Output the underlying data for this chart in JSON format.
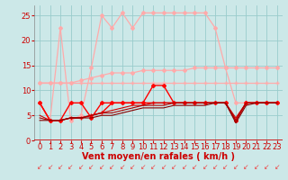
{
  "xlabel": "Vent moyen/en rafales ( km/h )",
  "background_color": "#cce8e8",
  "grid_color": "#99cccc",
  "xlim": [
    -0.5,
    23.5
  ],
  "ylim": [
    0,
    27
  ],
  "yticks": [
    0,
    5,
    10,
    15,
    20,
    25
  ],
  "xticks": [
    0,
    1,
    2,
    3,
    4,
    5,
    6,
    7,
    8,
    9,
    10,
    11,
    12,
    13,
    14,
    15,
    16,
    17,
    18,
    19,
    20,
    21,
    22,
    23
  ],
  "series": [
    {
      "y": [
        7.5,
        4.0,
        22.5,
        4.0,
        5.0,
        14.5,
        25.0,
        22.5,
        25.5,
        22.5,
        25.5,
        25.5,
        25.5,
        25.5,
        25.5,
        25.5,
        25.5,
        22.5,
        14.5,
        7.5,
        7.5,
        7.5,
        7.5,
        7.5
      ],
      "color": "#ffaaaa",
      "lw": 0.9,
      "marker": "D",
      "ms": 2.0
    },
    {
      "y": [
        11.5,
        11.5,
        11.5,
        11.5,
        12.0,
        12.5,
        13.0,
        13.5,
        13.5,
        13.5,
        14.0,
        14.0,
        14.0,
        14.0,
        14.0,
        14.5,
        14.5,
        14.5,
        14.5,
        14.5,
        14.5,
        14.5,
        14.5,
        14.5
      ],
      "color": "#ffaaaa",
      "lw": 0.9,
      "marker": "D",
      "ms": 2.0
    },
    {
      "y": [
        11.5,
        11.5,
        11.5,
        11.5,
        11.5,
        11.5,
        11.5,
        11.5,
        11.5,
        11.5,
        11.5,
        11.5,
        11.5,
        11.5,
        11.5,
        11.5,
        11.5,
        11.5,
        11.5,
        11.5,
        11.5,
        11.5,
        11.5,
        11.5
      ],
      "color": "#ffaaaa",
      "lw": 0.9,
      "marker": "+",
      "ms": 3.0
    },
    {
      "y": [
        7.5,
        4.0,
        4.0,
        7.5,
        7.5,
        4.5,
        7.5,
        7.5,
        7.5,
        7.5,
        7.5,
        11.0,
        11.0,
        7.5,
        7.5,
        7.5,
        7.5,
        7.5,
        7.5,
        4.0,
        7.5,
        7.5,
        7.5,
        7.5
      ],
      "color": "#ff0000",
      "lw": 1.0,
      "marker": "D",
      "ms": 2.0
    },
    {
      "y": [
        7.5,
        4.0,
        4.0,
        4.5,
        4.5,
        5.0,
        5.5,
        7.5,
        7.5,
        7.5,
        7.5,
        7.5,
        7.5,
        7.5,
        7.5,
        7.5,
        7.5,
        7.5,
        7.5,
        4.0,
        7.5,
        7.5,
        7.5,
        7.5
      ],
      "color": "#ff0000",
      "lw": 1.0,
      "marker": "+",
      "ms": 3.0
    },
    {
      "y": [
        5.0,
        4.0,
        4.0,
        4.5,
        4.5,
        5.0,
        5.5,
        6.0,
        6.5,
        7.0,
        7.0,
        7.5,
        7.5,
        7.5,
        7.5,
        7.5,
        7.5,
        7.5,
        7.5,
        4.5,
        7.5,
        7.5,
        7.5,
        7.5
      ],
      "color": "#cc0000",
      "lw": 0.8,
      "marker": null,
      "ms": 0
    },
    {
      "y": [
        4.5,
        4.0,
        4.0,
        4.5,
        4.5,
        5.0,
        5.5,
        5.5,
        6.0,
        6.5,
        7.0,
        7.0,
        7.0,
        7.5,
        7.5,
        7.5,
        7.5,
        7.5,
        7.5,
        4.0,
        7.5,
        7.5,
        7.5,
        7.5
      ],
      "color": "#aa0000",
      "lw": 0.8,
      "marker": null,
      "ms": 0
    },
    {
      "y": [
        4.0,
        4.0,
        4.0,
        4.5,
        4.5,
        4.5,
        5.0,
        5.0,
        5.5,
        6.0,
        6.5,
        6.5,
        6.5,
        7.0,
        7.0,
        7.0,
        7.0,
        7.5,
        7.5,
        3.5,
        7.0,
        7.5,
        7.5,
        7.5
      ],
      "color": "#880000",
      "lw": 0.8,
      "marker": null,
      "ms": 0
    }
  ],
  "arrow_color": "#ee4444",
  "xlabel_color": "#cc0000",
  "xlabel_fontsize": 7,
  "tick_color": "#cc0000",
  "tick_fontsize": 6
}
